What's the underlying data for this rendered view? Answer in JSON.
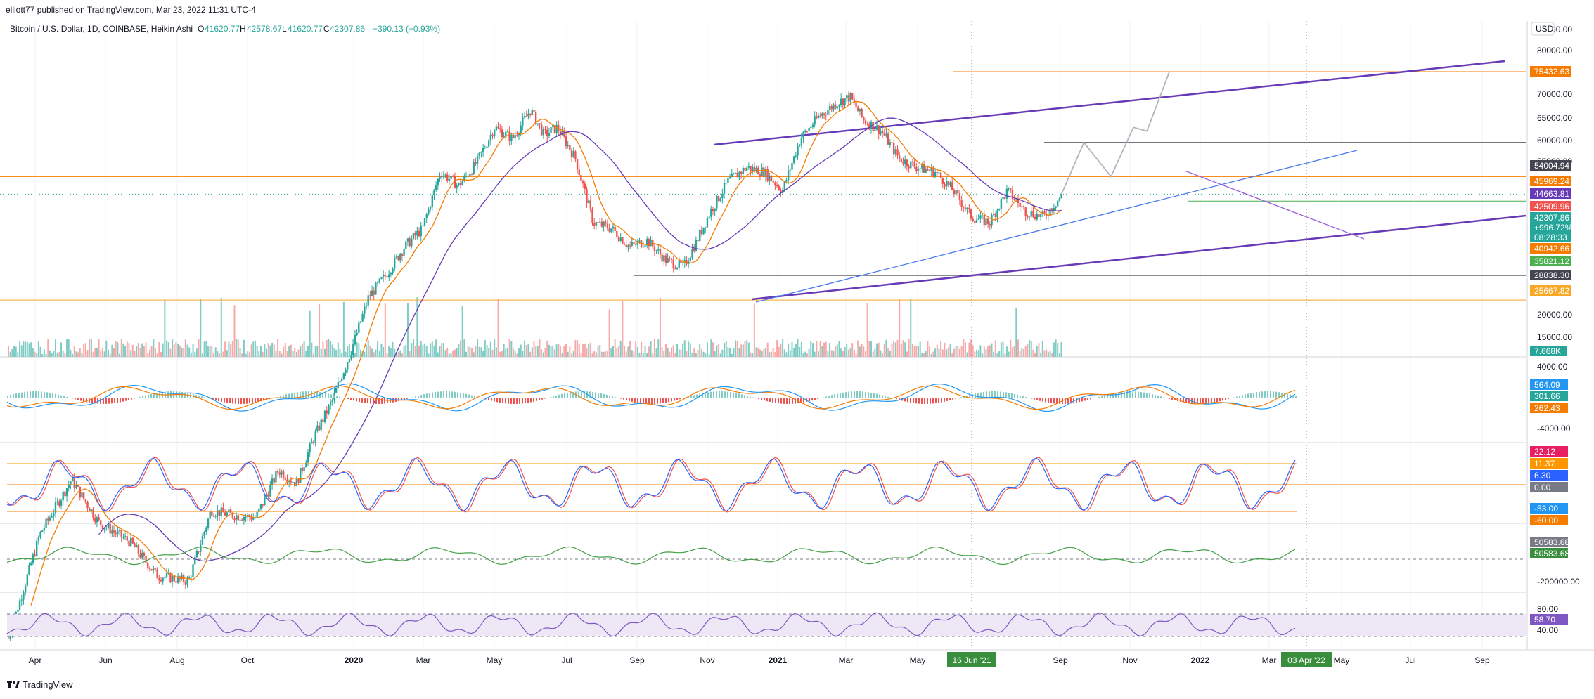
{
  "header": {
    "publisher_line": "elliott77 published on TradingView.com, Mar 23, 2022 11:31 UTC-4"
  },
  "legend": {
    "symbol": "Bitcoin / U.S. Dollar, 1D, COINBASE, Heikin Ashi",
    "o_label": "O",
    "o_value": "41620.77",
    "h_label": "H",
    "h_value": "42578.67",
    "l_label": "L",
    "l_value": "41620.77",
    "c_label": "C",
    "c_value": "42307.86",
    "change": "+390.13 (+0.93%)"
  },
  "currency": "USD",
  "footer": {
    "brand": "TradingView"
  },
  "colors": {
    "bull": "#26a69a",
    "bear": "#ef5350",
    "purple": "#673ab7",
    "orange": "#f57c00",
    "blue": "#2962ff",
    "grid": "#f0f3fa"
  },
  "chart_data": {
    "type": "line",
    "price_axis": {
      "scale": "log",
      "ticks": [
        85000,
        80000,
        70000,
        65000,
        60000,
        55000,
        20000,
        15000
      ]
    },
    "time_axis_labels": [
      "Apr",
      "Jun",
      "Aug",
      "Oct",
      "2020",
      "Mar",
      "May",
      "Jul",
      "Sep",
      "Nov",
      "2021",
      "Mar",
      "May",
      "Sep",
      "Nov",
      "2022",
      "Mar",
      "May",
      "Jul",
      "Sep"
    ],
    "crosshair_date": "16 Jun '21",
    "current_date": "03 Apr '22",
    "price_path": [
      [
        0,
        5200
      ],
      [
        0.07,
        8500
      ],
      [
        0.14,
        11000
      ],
      [
        0.2,
        9000
      ],
      [
        0.27,
        8200
      ],
      [
        0.33,
        7000
      ],
      [
        0.4,
        6800
      ],
      [
        0.45,
        9500
      ],
      [
        0.5,
        9300
      ],
      [
        0.55,
        9200
      ],
      [
        0.6,
        11500
      ],
      [
        0.64,
        10800
      ],
      [
        0.68,
        13500
      ],
      [
        0.72,
        16000
      ],
      [
        0.76,
        20000
      ],
      [
        0.8,
        26000
      ],
      [
        0.84,
        29000
      ],
      [
        0.88,
        33000
      ],
      [
        0.92,
        36000
      ],
      [
        0.96,
        47000
      ],
      [
        1.0,
        44000
      ],
      [
        1.04,
        49000
      ],
      [
        1.08,
        58000
      ],
      [
        1.12,
        55000
      ],
      [
        1.16,
        63000
      ],
      [
        1.19,
        56000
      ],
      [
        1.22,
        58000
      ],
      [
        1.26,
        50000
      ],
      [
        1.3,
        37000
      ],
      [
        1.34,
        36000
      ],
      [
        1.38,
        33000
      ],
      [
        1.42,
        34000
      ],
      [
        1.46,
        31000
      ],
      [
        1.5,
        30000
      ],
      [
        1.53,
        34000
      ],
      [
        1.56,
        39000
      ],
      [
        1.6,
        45000
      ],
      [
        1.64,
        48000
      ],
      [
        1.68,
        47000
      ],
      [
        1.72,
        43000
      ],
      [
        1.76,
        55000
      ],
      [
        1.8,
        61000
      ],
      [
        1.84,
        65000
      ],
      [
        1.87,
        67000
      ],
      [
        1.9,
        60000
      ],
      [
        1.94,
        57000
      ],
      [
        1.98,
        50000
      ],
      [
        2.02,
        48000
      ],
      [
        2.06,
        47000
      ],
      [
        2.1,
        43000
      ],
      [
        2.14,
        38000
      ],
      [
        2.18,
        37000
      ],
      [
        2.22,
        43000
      ],
      [
        2.26,
        39000
      ],
      [
        2.3,
        38000
      ],
      [
        2.34,
        42000
      ]
    ],
    "projection_path": [
      [
        2.34,
        42307
      ],
      [
        2.39,
        54004
      ],
      [
        2.45,
        45969
      ],
      [
        2.5,
        58000
      ],
      [
        2.53,
        57000
      ],
      [
        2.58,
        75432
      ]
    ],
    "price_tags": [
      {
        "value": "75432.63",
        "color": "#f57c00"
      },
      {
        "value": "54004.94",
        "color": "#434651"
      },
      {
        "value": "45969.24",
        "color": "#f57c00"
      },
      {
        "value": "44663.81",
        "color": "#673ab7"
      },
      {
        "value": "42509.96",
        "color": "#ef5350"
      },
      {
        "value": "42307.86",
        "color": "#26a69a"
      },
      {
        "value": "+996.72%",
        "color": "#26a69a"
      },
      {
        "value": "08:28:33",
        "color": "#26a69a"
      },
      {
        "value": "40942.66",
        "color": "#f57c00"
      },
      {
        "value": "35821.12",
        "color": "#4caf50"
      },
      {
        "value": "28838.30",
        "color": "#434651"
      },
      {
        "value": "25667.82",
        "color": "#f9a825"
      }
    ],
    "horizontal_levels": [
      {
        "price": 75432.63,
        "color": "#f57c00"
      },
      {
        "price": 54004.94,
        "color": "#434651"
      },
      {
        "price": 45969.24,
        "color": "#f57c00"
      },
      {
        "price": 40942.66,
        "color": "#4caf50"
      },
      {
        "price": 28838.3,
        "color": "#131722"
      },
      {
        "price": 25667.82,
        "color": "#f9a825"
      }
    ],
    "volume_tag": "7.668K",
    "macd": {
      "ticks": [
        "4000.00",
        "-4000.00"
      ],
      "tags": [
        {
          "value": "564.09",
          "color": "#2196f3"
        },
        {
          "value": "301.66",
          "color": "#26a69a"
        },
        {
          "value": "262.43",
          "color": "#f57c00"
        }
      ]
    },
    "oscillator": {
      "tags": [
        {
          "value": "22.12",
          "color": "#e91e63"
        },
        {
          "value": "11.37",
          "color": "#ff9800"
        },
        {
          "value": "6.30",
          "color": "#2962ff"
        },
        {
          "value": "0.00",
          "color": "#787b86"
        },
        {
          "value": "-53.00",
          "color": "#2196f3"
        },
        {
          "value": "-60.00",
          "color": "#f57c00"
        }
      ]
    },
    "obv": {
      "ticks": [
        "-200000.00"
      ],
      "tags": [
        {
          "value": "50583.68",
          "color": "#787b86"
        },
        {
          "value": "50583.68",
          "color": "#388e3c"
        }
      ]
    },
    "rsi": {
      "ticks": [
        "80.00",
        "40.00"
      ],
      "tags": [
        {
          "value": "58.70",
          "color": "#7e57c2"
        }
      ]
    }
  }
}
